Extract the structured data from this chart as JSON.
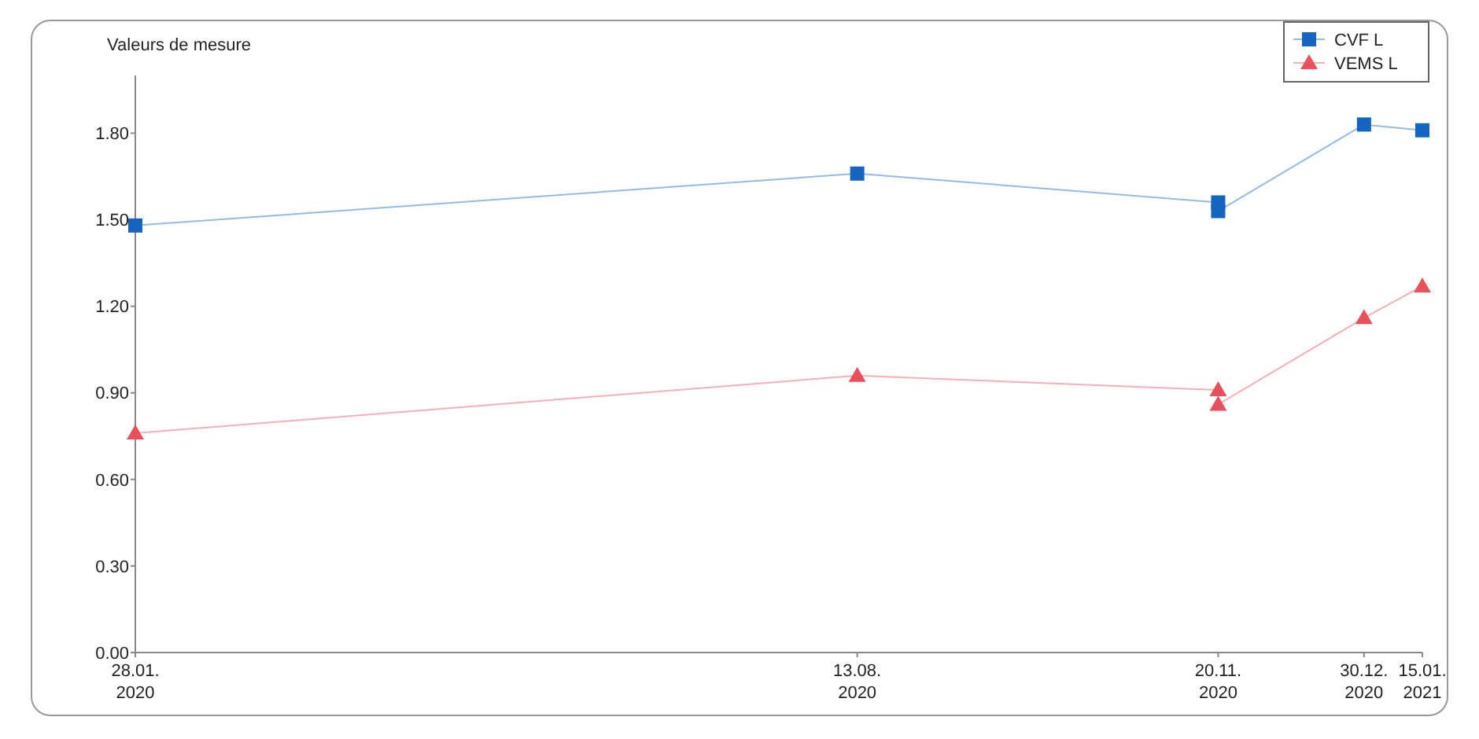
{
  "chart_data": {
    "type": "line",
    "ylabel": "Valeurs de mesure",
    "x": [
      "2020-01-28",
      "2020-08-13",
      "2020-11-20",
      "2020-11-20",
      "2020-12-30",
      "2021-01-15"
    ],
    "series": [
      {
        "name": "CVF L",
        "color": "#1565c0",
        "marker": "square",
        "values": [
          1.48,
          1.66,
          1.56,
          1.53,
          1.83,
          1.81
        ]
      },
      {
        "name": "VEMS L",
        "color": "#e8505b",
        "marker": "triangle",
        "values": [
          0.76,
          0.96,
          0.91,
          0.86,
          1.16,
          1.27
        ]
      }
    ],
    "xlim": [
      "2020-01-28",
      "2021-01-15"
    ],
    "xticks": [
      {
        "value": "2020-01-28",
        "label": "28.01.\n2020"
      },
      {
        "value": "2020-08-13",
        "label": "13.08.\n2020"
      },
      {
        "value": "2020-11-20",
        "label": "20.11.\n2020"
      },
      {
        "value": "2020-12-30",
        "label": "30.12.\n2020"
      },
      {
        "value": "2021-01-15",
        "label": "15.01.\n2021"
      }
    ],
    "ylim": [
      0,
      2.0
    ],
    "yticks": [
      {
        "value": 0,
        "label": "0.00"
      },
      {
        "value": 0.3,
        "label": "0.30"
      },
      {
        "value": 0.6,
        "label": "0.60"
      },
      {
        "value": 0.9,
        "label": "0.90"
      },
      {
        "value": 1.2,
        "label": "1.20"
      },
      {
        "value": 1.5,
        "label": "1.50"
      },
      {
        "value": 1.8,
        "label": "1.80"
      }
    ],
    "grid": false,
    "legend": "top right",
    "line_style": "solid"
  }
}
